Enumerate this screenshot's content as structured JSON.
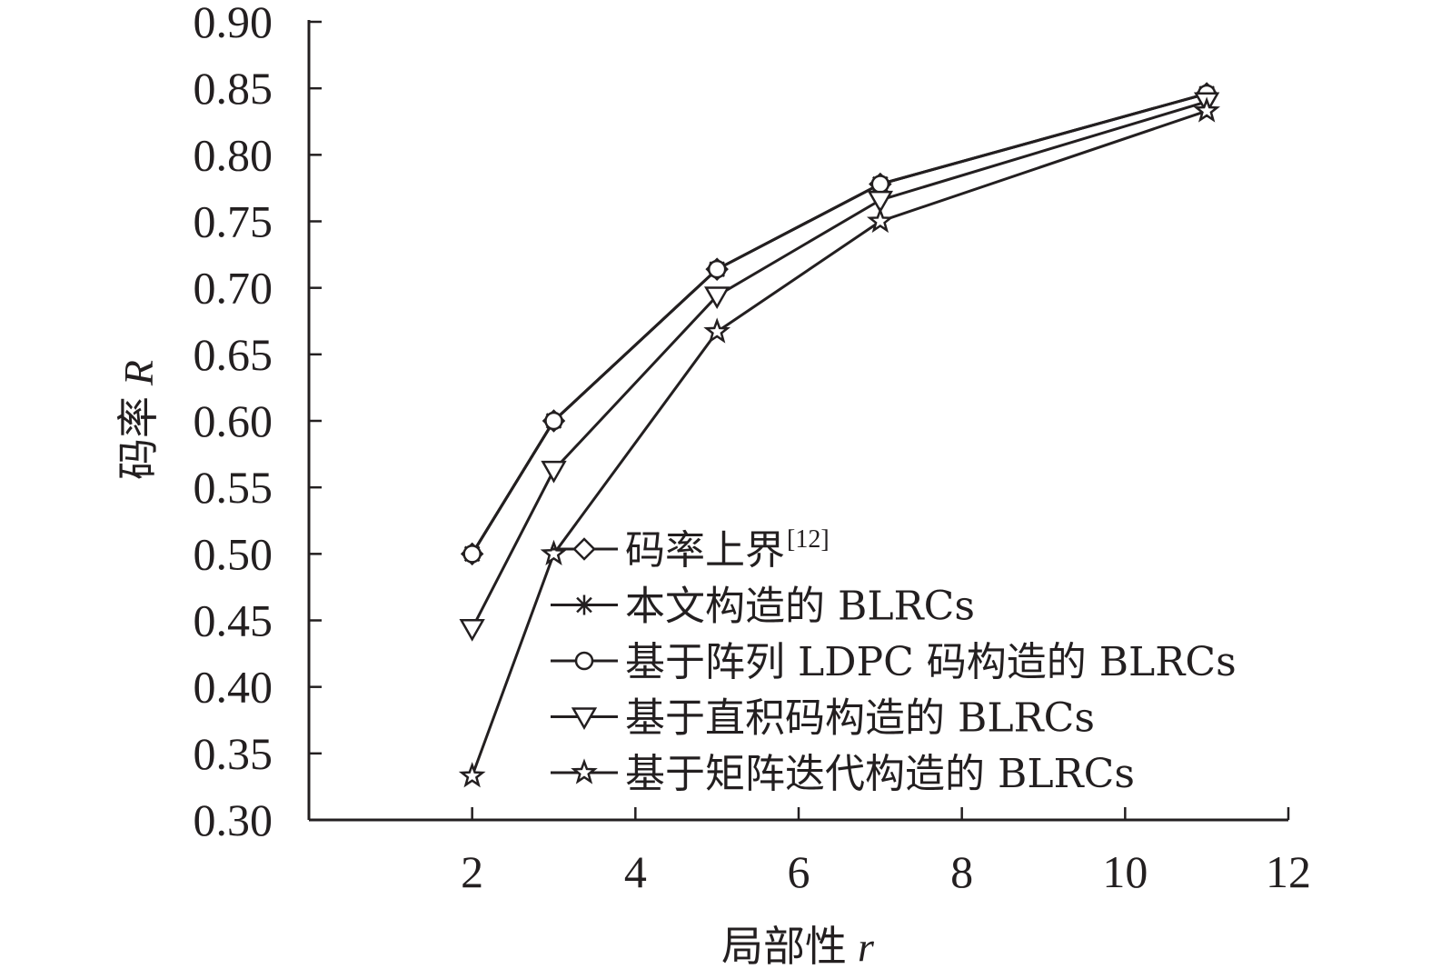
{
  "chart_data": {
    "type": "line",
    "xlabel": "局部性",
    "xlabel_var": "r",
    "ylabel": "码率",
    "ylabel_var": "R",
    "xlim": [
      0,
      12
    ],
    "ylim": [
      0.3,
      0.9
    ],
    "xticks": [
      2,
      4,
      6,
      8,
      10,
      12
    ],
    "yticks": [
      0.3,
      0.35,
      0.4,
      0.45,
      0.5,
      0.55,
      0.6,
      0.65,
      0.7,
      0.75,
      0.8,
      0.85,
      0.9
    ],
    "ytick_labels": [
      "0.30",
      "0.35",
      "0.40",
      "0.45",
      "0.50",
      "0.55",
      "0.60",
      "0.65",
      "0.70",
      "0.75",
      "0.80",
      "0.85",
      "0.90"
    ],
    "legend_position": "bottom-right",
    "grid": false,
    "x": [
      2,
      3,
      5,
      7,
      11
    ],
    "series": [
      {
        "name": "码率上界",
        "name_sup": "[12]",
        "marker": "diamond",
        "values": [
          0.5,
          0.6,
          0.714,
          0.778,
          0.846
        ]
      },
      {
        "name": "本文构造的 BLRCs",
        "marker": "asterisk",
        "values": [
          0.5,
          0.6,
          0.714,
          0.778,
          0.846
        ]
      },
      {
        "name": "基于阵列 LDPC 码构造的 BLRCs",
        "marker": "circle",
        "values": [
          0.5,
          0.6,
          0.714,
          0.778,
          0.846
        ]
      },
      {
        "name": "基于直积码构造的 BLRCs",
        "marker": "triangle-down",
        "values": [
          0.444,
          0.563,
          0.694,
          0.766,
          0.84
        ]
      },
      {
        "name": "基于矩阵迭代构造的 BLRCs",
        "marker": "star",
        "values": [
          0.333,
          0.5,
          0.667,
          0.75,
          0.833
        ]
      }
    ]
  }
}
